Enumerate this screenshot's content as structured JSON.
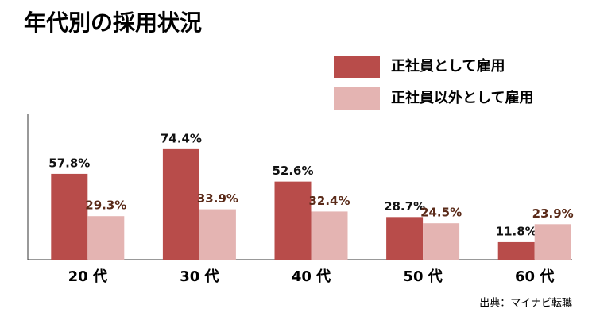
{
  "chart_data": {
    "type": "bar",
    "title": "年代別の採用状況",
    "source": "出典：マイナビ転職",
    "categories": [
      "20 代",
      "30 代",
      "40 代",
      "50 代",
      "60 代"
    ],
    "series": [
      {
        "name": "正社員として雇用",
        "color": "#b84c4a",
        "label_color": "#111111",
        "values": [
          57.8,
          74.4,
          52.6,
          28.7,
          11.8
        ],
        "value_labels": [
          "57.8%",
          "74.4%",
          "52.6%",
          "28.7%",
          "11.8%"
        ]
      },
      {
        "name": "正社員以外として雇用",
        "color": "#e4b4b2",
        "label_color": "#5a2a18",
        "values": [
          29.3,
          33.9,
          32.4,
          24.5,
          23.9
        ],
        "value_labels": [
          "29.3%",
          "33.9%",
          "32.4%",
          "24.5%",
          "23.9%"
        ]
      }
    ],
    "ylim": [
      0,
      100
    ],
    "legend": "top-right"
  }
}
